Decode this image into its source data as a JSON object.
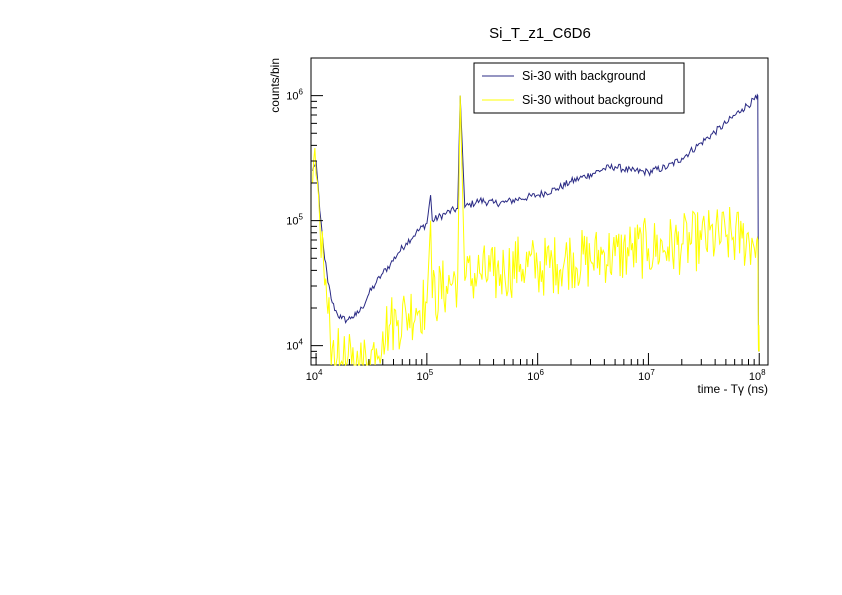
{
  "chart_data": {
    "type": "line",
    "title": "Si_T_z1_C6D6",
    "xlabel": "time - Tγ (ns)",
    "ylabel": "counts/bin",
    "xscale": "log",
    "yscale": "log",
    "xlim": [
      9000,
      120000000
    ],
    "ylim": [
      7000,
      2000000
    ],
    "x_ticks": [
      {
        "value": 10000,
        "mantissa": "10",
        "exponent": "4"
      },
      {
        "value": 100000,
        "mantissa": "10",
        "exponent": "5"
      },
      {
        "value": 1000000,
        "mantissa": "10",
        "exponent": "6"
      },
      {
        "value": 10000000,
        "mantissa": "10",
        "exponent": "7"
      },
      {
        "value": 100000000,
        "mantissa": "10",
        "exponent": "8"
      }
    ],
    "y_ticks": [
      {
        "value": 10000,
        "mantissa": "10",
        "exponent": "4"
      },
      {
        "value": 100000,
        "mantissa": "10",
        "exponent": "5"
      },
      {
        "value": 1000000,
        "mantissa": "10",
        "exponent": "6"
      }
    ],
    "legend_position": "top-right",
    "grid": false,
    "series": [
      {
        "name": "Si-30 with background",
        "color": "#2b2b85",
        "x": [
          9300,
          10000,
          10800,
          11700,
          12800,
          14000,
          15500,
          17000,
          19000,
          21000,
          23000,
          26000,
          30000,
          35000,
          40000,
          47000,
          55000,
          65000,
          80000,
          100000,
          108000,
          112000,
          150000,
          190000,
          200000,
          220000,
          300000,
          400000,
          500000,
          700000,
          1000000,
          1500000,
          2000000,
          3000000,
          4000000,
          5000000,
          7000000,
          10000000,
          15000000,
          20000000,
          30000000,
          50000000,
          70000000,
          95000000,
          97000000,
          98500000,
          100000000
        ],
        "y": [
          250000,
          300000,
          120000,
          60000,
          32000,
          22000,
          18000,
          16500,
          16000,
          17000,
          17500,
          20000,
          26000,
          32000,
          38000,
          45000,
          55000,
          66000,
          80000,
          95000,
          160000,
          100000,
          115000,
          125000,
          1000000,
          128000,
          145000,
          138000,
          140000,
          150000,
          160000,
          180000,
          205000,
          235000,
          260000,
          270000,
          250000,
          245000,
          270000,
          315000,
          420000,
          600000,
          780000,
          950000,
          1000000,
          9000,
          9000
        ]
      },
      {
        "name": "Si-30 without background",
        "color": "#ffff00",
        "x": [
          9300,
          10000,
          10800,
          11700,
          12800,
          14000,
          15500,
          17000,
          19000,
          21000,
          23000,
          26000,
          30000,
          35000,
          40000,
          47000,
          55000,
          65000,
          80000,
          100000,
          108000,
          112000,
          150000,
          190000,
          200000,
          220000,
          300000,
          400000,
          500000,
          700000,
          1000000,
          1500000,
          2000000,
          3000000,
          4000000,
          5000000,
          7000000,
          10000000,
          15000000,
          20000000,
          30000000,
          50000000,
          70000000,
          95000000,
          97000000,
          98500000,
          100000000
        ],
        "y": [
          200000,
          230000,
          100000,
          45000,
          18000,
          9500,
          8000,
          7500,
          7200,
          7100,
          7000,
          7200,
          7800,
          9500,
          13000,
          15000,
          16000,
          18000,
          20000,
          22000,
          100000,
          24000,
          30000,
          35000,
          1000000,
          33000,
          38000,
          36000,
          40000,
          45000,
          42000,
          45000,
          50000,
          48000,
          55000,
          52000,
          58000,
          60000,
          62000,
          65000,
          70000,
          75000,
          72000,
          70000,
          70000,
          9000,
          9000
        ]
      }
    ]
  }
}
